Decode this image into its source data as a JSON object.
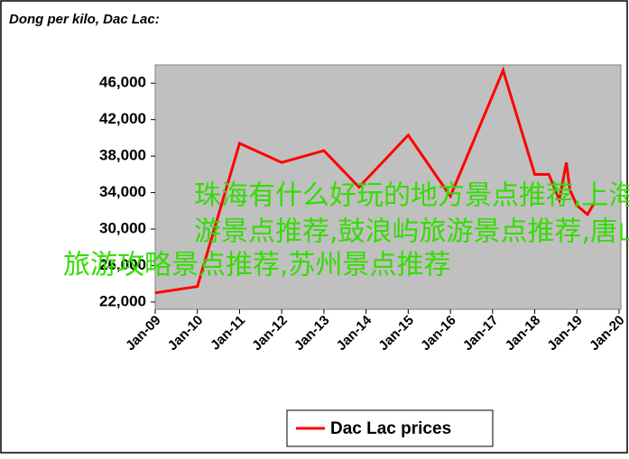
{
  "chart_data": {
    "type": "line",
    "title": "Dong per kilo, Dac Lac:",
    "x": [
      "Jan-09",
      "Jan-10",
      "Jan-11",
      "Jan-12",
      "Jan-13",
      "Nov-13",
      "Jan-15",
      "Jan-16",
      "Apr-17",
      "Jan-18",
      "May-18",
      "Aug-18",
      "Oct-18",
      "Nov-18",
      "Jan-19",
      "Apr-19",
      "Jun-19"
    ],
    "series": [
      {
        "name": "Dac Lac prices",
        "color": "#ff0000",
        "values": [
          23000,
          23700,
          39400,
          37300,
          38600,
          34600,
          40300,
          33600,
          47400,
          36000,
          36000,
          33200,
          37300,
          34300,
          32600,
          31600,
          32900
        ]
      }
    ],
    "xticks": [
      "Jan-09",
      "Jan-10",
      "Jan-11",
      "Jan-12",
      "Jan-13",
      "Jan-14",
      "Jan-15",
      "Jan-16",
      "Jan-17",
      "Jan-18",
      "Jan-19",
      "Jan-20"
    ],
    "xlim": [
      "Jan-09",
      "Jan-20"
    ],
    "ylim": [
      21200,
      48000
    ],
    "yticks": [
      {
        "value": 22000,
        "label": "22,000"
      },
      {
        "value": 26000,
        "label": "26,000"
      },
      {
        "value": 30000,
        "label": "30,000"
      },
      {
        "value": 34000,
        "label": "34,000"
      },
      {
        "value": 38000,
        "label": "38,000"
      },
      {
        "value": 42000,
        "label": "42,000"
      },
      {
        "value": 46000,
        "label": "46,000"
      }
    ],
    "legend": "bottom",
    "overlay_text": [
      "珠海有什么好玩的地方景点推荐,上海旅",
      "游景点推荐,鼓浪屿旅游景点推荐,唐山",
      "旅游攻略景点推荐,苏州景点推荐"
    ]
  }
}
